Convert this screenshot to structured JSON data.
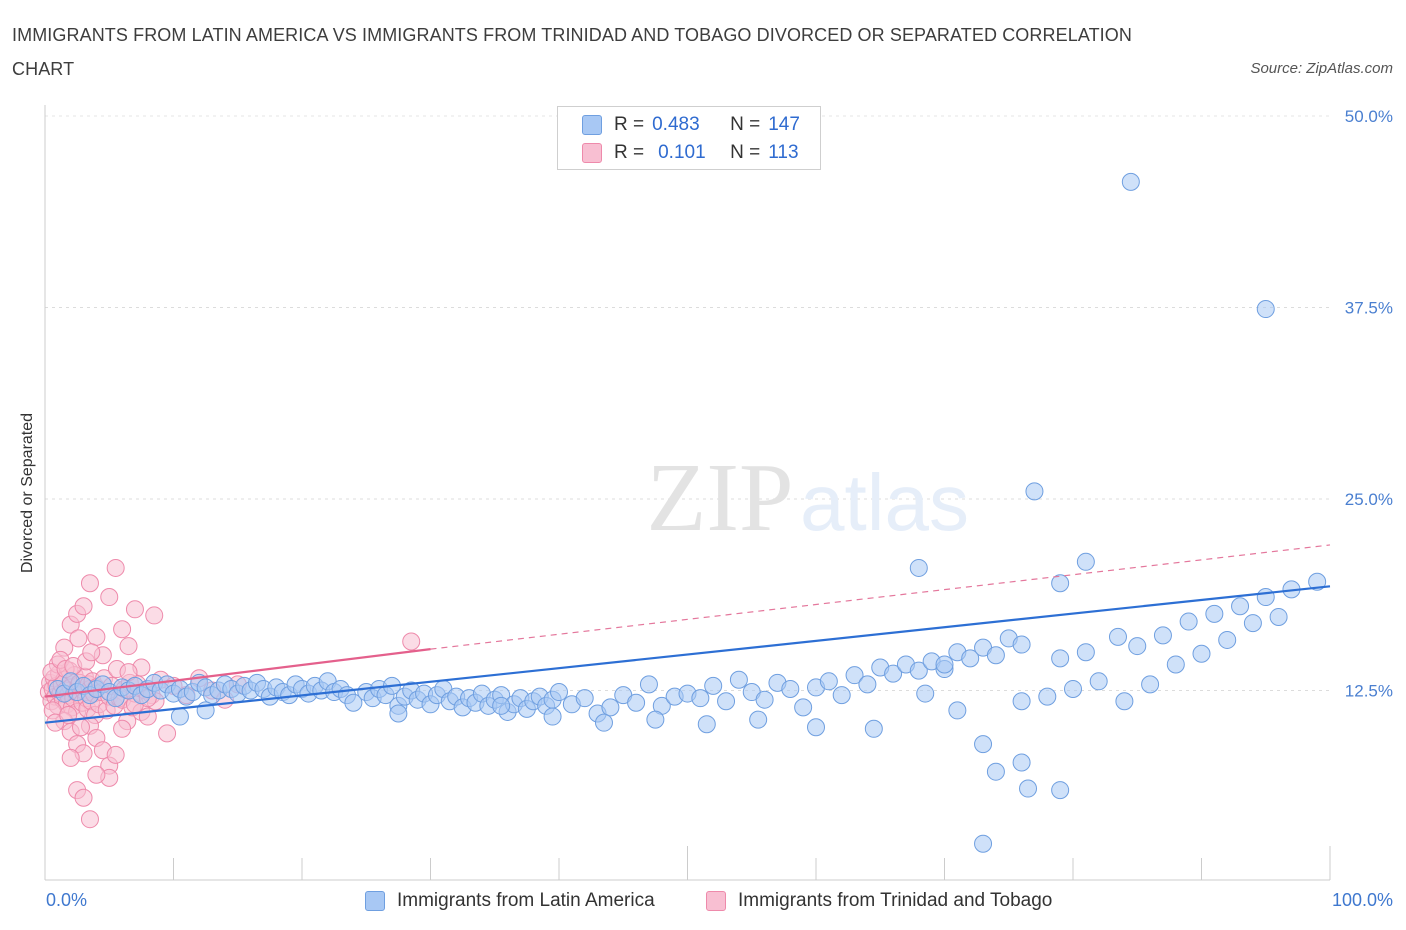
{
  "header": {
    "title": "IMMIGRANTS FROM LATIN AMERICA VS IMMIGRANTS FROM TRINIDAD AND TOBAGO DIVORCED OR SEPARATED CORRELATION CHART",
    "source": "Source: ZipAtlas.com"
  },
  "watermark": {
    "zip": "ZIP",
    "atlas": "atlas"
  },
  "legend": {
    "r_label": "R =",
    "n_label": "N =",
    "series": [
      {
        "r": "0.483",
        "n": "147",
        "color": "#a8c8f4",
        "stroke": "#6f9fe0"
      },
      {
        "r": "0.101",
        "n": "113",
        "color": "#f8bfd2",
        "stroke": "#ee8aab"
      }
    ]
  },
  "bottom_legend": {
    "blue": "Immigrants from Latin America",
    "pink": "Immigrants from Trinidad and Tobago"
  },
  "axes": {
    "x_min_label": "0.0%",
    "x_max_label": "100.0%",
    "ylabel": "Divorced or Separated",
    "y_ticks": [
      "12.5%",
      "25.0%",
      "37.5%",
      "50.0%"
    ]
  },
  "chart_data": {
    "type": "scatter",
    "title": "IMMIGRANTS FROM LATIN AMERICA VS IMMIGRANTS FROM TRINIDAD AND TOBAGO DIVORCED OR SEPARATED CORRELATION CHART",
    "xlabel": "",
    "ylabel": "Divorced or Separated",
    "xlim": [
      0,
      100
    ],
    "ylim": [
      0,
      50
    ],
    "y_ticks": [
      12.5,
      25.0,
      37.5,
      50.0
    ],
    "grid": true,
    "legend_position": "top-center",
    "series": [
      {
        "name": "Immigrants from Latin America",
        "color": "#6f9fe0",
        "fill": "#a8c8f4",
        "r": 0.483,
        "n": 147,
        "trend": {
          "x": [
            0,
            100
          ],
          "y": [
            10.4,
            19.3
          ]
        },
        "points": [
          [
            1.0,
            12.6
          ],
          [
            1.5,
            12.3
          ],
          [
            2.0,
            13.1
          ],
          [
            2.5,
            12.4
          ],
          [
            3.0,
            12.8
          ],
          [
            3.5,
            12.2
          ],
          [
            4.0,
            12.6
          ],
          [
            4.5,
            12.9
          ],
          [
            5.0,
            12.4
          ],
          [
            5.5,
            12.0
          ],
          [
            6.0,
            12.7
          ],
          [
            6.5,
            12.5
          ],
          [
            7.0,
            12.8
          ],
          [
            7.5,
            12.2
          ],
          [
            8.0,
            12.6
          ],
          [
            8.5,
            13.0
          ],
          [
            9.0,
            12.5
          ],
          [
            9.5,
            12.9
          ],
          [
            10.0,
            12.3
          ],
          [
            10.5,
            12.6
          ],
          [
            11.0,
            12.1
          ],
          [
            11.5,
            12.4
          ],
          [
            12.0,
            13.0
          ],
          [
            12.5,
            12.7
          ],
          [
            13.0,
            12.2
          ],
          [
            13.5,
            12.5
          ],
          [
            14.0,
            12.9
          ],
          [
            14.5,
            12.6
          ],
          [
            15.0,
            12.3
          ],
          [
            15.5,
            12.8
          ],
          [
            16.0,
            12.5
          ],
          [
            16.5,
            13.0
          ],
          [
            17.0,
            12.6
          ],
          [
            17.5,
            12.1
          ],
          [
            18.0,
            12.7
          ],
          [
            18.5,
            12.4
          ],
          [
            19.0,
            12.2
          ],
          [
            19.5,
            12.9
          ],
          [
            20.0,
            12.6
          ],
          [
            20.5,
            12.3
          ],
          [
            21.0,
            12.8
          ],
          [
            21.5,
            12.5
          ],
          [
            22.0,
            13.1
          ],
          [
            22.5,
            12.4
          ],
          [
            23.0,
            12.6
          ],
          [
            23.5,
            12.2
          ],
          [
            24.0,
            11.7
          ],
          [
            25.0,
            12.4
          ],
          [
            25.5,
            12.0
          ],
          [
            26.0,
            12.6
          ],
          [
            26.5,
            12.2
          ],
          [
            27.0,
            12.8
          ],
          [
            27.5,
            11.5
          ],
          [
            28.0,
            12.1
          ],
          [
            28.5,
            12.5
          ],
          [
            29.0,
            11.9
          ],
          [
            29.5,
            12.3
          ],
          [
            30.0,
            11.6
          ],
          [
            30.5,
            12.2
          ],
          [
            31.0,
            12.6
          ],
          [
            31.5,
            11.8
          ],
          [
            32.0,
            12.1
          ],
          [
            32.5,
            11.4
          ],
          [
            33.0,
            12.0
          ],
          [
            33.5,
            11.7
          ],
          [
            34.0,
            12.3
          ],
          [
            34.5,
            11.5
          ],
          [
            35.0,
            11.9
          ],
          [
            35.5,
            12.2
          ],
          [
            36.0,
            11.1
          ],
          [
            36.5,
            11.6
          ],
          [
            37.0,
            12.0
          ],
          [
            37.5,
            11.3
          ],
          [
            38.0,
            11.8
          ],
          [
            38.5,
            12.1
          ],
          [
            39.0,
            11.5
          ],
          [
            39.5,
            11.9
          ],
          [
            40.0,
            12.4
          ],
          [
            41.0,
            11.6
          ],
          [
            42.0,
            12.0
          ],
          [
            43.0,
            11.0
          ],
          [
            44.0,
            11.4
          ],
          [
            45.0,
            12.2
          ],
          [
            46.0,
            11.7
          ],
          [
            47.0,
            12.9
          ],
          [
            48.0,
            11.5
          ],
          [
            49.0,
            12.1
          ],
          [
            50.0,
            12.3
          ],
          [
            51.0,
            12.0
          ],
          [
            52.0,
            12.8
          ],
          [
            53.0,
            11.8
          ],
          [
            54.0,
            13.2
          ],
          [
            55.0,
            12.4
          ],
          [
            56.0,
            11.9
          ],
          [
            57.0,
            13.0
          ],
          [
            58.0,
            12.6
          ],
          [
            59.0,
            11.4
          ],
          [
            60.0,
            12.7
          ],
          [
            61.0,
            13.1
          ],
          [
            62.0,
            12.2
          ],
          [
            63.0,
            13.5
          ],
          [
            64.0,
            12.9
          ],
          [
            65.0,
            14.0
          ],
          [
            66.0,
            13.6
          ],
          [
            67.0,
            14.2
          ],
          [
            68.0,
            13.8
          ],
          [
            69.0,
            14.4
          ],
          [
            70.0,
            13.9
          ],
          [
            71.0,
            15.0
          ],
          [
            72.0,
            14.6
          ],
          [
            73.0,
            15.3
          ],
          [
            74.0,
            14.8
          ],
          [
            75.0,
            15.9
          ],
          [
            76.0,
            15.5
          ],
          [
            10.5,
            10.8
          ],
          [
            12.5,
            11.2
          ],
          [
            27.5,
            11.0
          ],
          [
            35.5,
            11.5
          ],
          [
            39.5,
            10.8
          ],
          [
            43.5,
            10.4
          ],
          [
            47.5,
            10.6
          ],
          [
            51.5,
            10.3
          ],
          [
            55.5,
            10.6
          ],
          [
            60.0,
            10.1
          ],
          [
            64.5,
            10.0
          ],
          [
            68.5,
            12.3
          ],
          [
            71.0,
            11.2
          ],
          [
            73.0,
            9.0
          ],
          [
            76.0,
            11.8
          ],
          [
            78.0,
            12.1
          ],
          [
            80.0,
            12.6
          ],
          [
            82.0,
            13.1
          ],
          [
            84.0,
            11.8
          ],
          [
            86.0,
            12.9
          ],
          [
            88.0,
            14.2
          ],
          [
            90.0,
            14.9
          ],
          [
            92.0,
            15.8
          ],
          [
            94.0,
            16.9
          ],
          [
            96.0,
            17.3
          ],
          [
            83.5,
            16.0
          ],
          [
            85.0,
            15.4
          ],
          [
            87.0,
            16.1
          ],
          [
            89.0,
            17.0
          ],
          [
            91.0,
            17.5
          ],
          [
            93.0,
            18.0
          ],
          [
            95.0,
            18.6
          ],
          [
            97.0,
            19.1
          ],
          [
            99.0,
            19.6
          ],
          [
            81.0,
            15.0
          ],
          [
            79.0,
            14.6
          ],
          [
            74.0,
            7.2
          ],
          [
            76.5,
            6.1
          ],
          [
            79.0,
            6.0
          ],
          [
            76.0,
            7.8
          ],
          [
            73.0,
            2.5
          ],
          [
            70.0,
            14.2
          ],
          [
            68.0,
            20.5
          ],
          [
            84.5,
            45.7
          ],
          [
            95.0,
            37.4
          ],
          [
            77.0,
            25.5
          ],
          [
            81.0,
            20.9
          ],
          [
            79.0,
            19.5
          ]
        ]
      },
      {
        "name": "Immigrants from Trinidad and Tobago",
        "color": "#ee8aab",
        "fill": "#f8bfd2",
        "r": 0.101,
        "n": 113,
        "trend": {
          "x": [
            0,
            30
          ],
          "y": [
            12.1,
            15.2
          ]
        },
        "trend_dashed": {
          "x": [
            30,
            100
          ],
          "y": [
            15.2,
            22.0
          ]
        },
        "points": [
          [
            0.3,
            12.4
          ],
          [
            0.4,
            13.0
          ],
          [
            0.5,
            11.8
          ],
          [
            0.6,
            12.6
          ],
          [
            0.7,
            13.3
          ],
          [
            0.8,
            12.1
          ],
          [
            0.9,
            12.8
          ],
          [
            1.0,
            11.5
          ],
          [
            1.1,
            13.6
          ],
          [
            1.2,
            12.3
          ],
          [
            1.3,
            12.9
          ],
          [
            1.4,
            11.9
          ],
          [
            1.5,
            13.2
          ],
          [
            1.6,
            12.5
          ],
          [
            1.7,
            11.6
          ],
          [
            1.8,
            12.2
          ],
          [
            1.9,
            13.8
          ],
          [
            2.0,
            12.7
          ],
          [
            2.1,
            11.4
          ],
          [
            2.2,
            12.0
          ],
          [
            2.3,
            13.5
          ],
          [
            2.4,
            12.4
          ],
          [
            2.5,
            11.1
          ],
          [
            2.6,
            12.8
          ],
          [
            2.7,
            13.0
          ],
          [
            2.8,
            12.2
          ],
          [
            2.9,
            11.7
          ],
          [
            3.0,
            12.5
          ],
          [
            3.1,
            13.4
          ],
          [
            3.2,
            12.0
          ],
          [
            3.3,
            11.3
          ],
          [
            3.4,
            12.9
          ],
          [
            3.5,
            12.6
          ],
          [
            3.6,
            11.8
          ],
          [
            3.7,
            13.1
          ],
          [
            3.8,
            12.3
          ],
          [
            3.9,
            10.9
          ],
          [
            4.0,
            12.7
          ],
          [
            4.2,
            11.6
          ],
          [
            4.4,
            12.4
          ],
          [
            4.6,
            13.3
          ],
          [
            4.8,
            11.2
          ],
          [
            5.0,
            12.1
          ],
          [
            5.2,
            12.8
          ],
          [
            5.4,
            11.5
          ],
          [
            5.6,
            13.9
          ],
          [
            5.8,
            12.0
          ],
          [
            6.0,
            11.9
          ],
          [
            6.2,
            12.6
          ],
          [
            6.4,
            10.5
          ],
          [
            6.6,
            13.0
          ],
          [
            6.8,
            11.4
          ],
          [
            7.0,
            12.3
          ],
          [
            7.2,
            12.9
          ],
          [
            7.5,
            11.1
          ],
          [
            7.8,
            12.5
          ],
          [
            8.0,
            10.8
          ],
          [
            8.3,
            12.2
          ],
          [
            8.6,
            11.8
          ],
          [
            9.0,
            13.2
          ],
          [
            1.0,
            14.2
          ],
          [
            1.5,
            15.3
          ],
          [
            2.0,
            16.8
          ],
          [
            2.5,
            17.5
          ],
          [
            3.0,
            18.0
          ],
          [
            3.5,
            19.5
          ],
          [
            4.0,
            16.0
          ],
          [
            4.5,
            14.8
          ],
          [
            5.0,
            18.6
          ],
          [
            5.5,
            20.5
          ],
          [
            6.0,
            16.5
          ],
          [
            6.5,
            15.4
          ],
          [
            7.0,
            17.8
          ],
          [
            7.5,
            14.0
          ],
          [
            1.5,
            10.5
          ],
          [
            2.0,
            9.8
          ],
          [
            2.5,
            9.0
          ],
          [
            3.0,
            8.4
          ],
          [
            3.5,
            10.2
          ],
          [
            4.0,
            9.4
          ],
          [
            4.5,
            8.6
          ],
          [
            5.0,
            7.6
          ],
          [
            5.5,
            8.3
          ],
          [
            6.0,
            10.0
          ],
          [
            2.5,
            6.0
          ],
          [
            3.0,
            5.5
          ],
          [
            3.5,
            4.1
          ],
          [
            5.0,
            6.8
          ],
          [
            2.0,
            8.1
          ],
          [
            4.0,
            7.0
          ],
          [
            10.0,
            12.8
          ],
          [
            11.0,
            12.2
          ],
          [
            12.0,
            13.3
          ],
          [
            13.0,
            12.5
          ],
          [
            14.0,
            11.9
          ],
          [
            15.0,
            12.9
          ],
          [
            9.5,
            9.7
          ],
          [
            8.5,
            17.4
          ],
          [
            28.5,
            15.7
          ],
          [
            6.5,
            13.7
          ],
          [
            7.0,
            11.6
          ],
          [
            8.0,
            12.0
          ],
          [
            0.5,
            13.7
          ],
          [
            0.6,
            11.2
          ],
          [
            0.8,
            10.4
          ],
          [
            1.2,
            14.5
          ],
          [
            1.6,
            13.9
          ],
          [
            1.8,
            10.9
          ],
          [
            2.2,
            14.1
          ],
          [
            2.6,
            15.9
          ],
          [
            2.8,
            10.1
          ],
          [
            3.2,
            14.4
          ],
          [
            3.6,
            15.0
          ]
        ]
      }
    ]
  }
}
